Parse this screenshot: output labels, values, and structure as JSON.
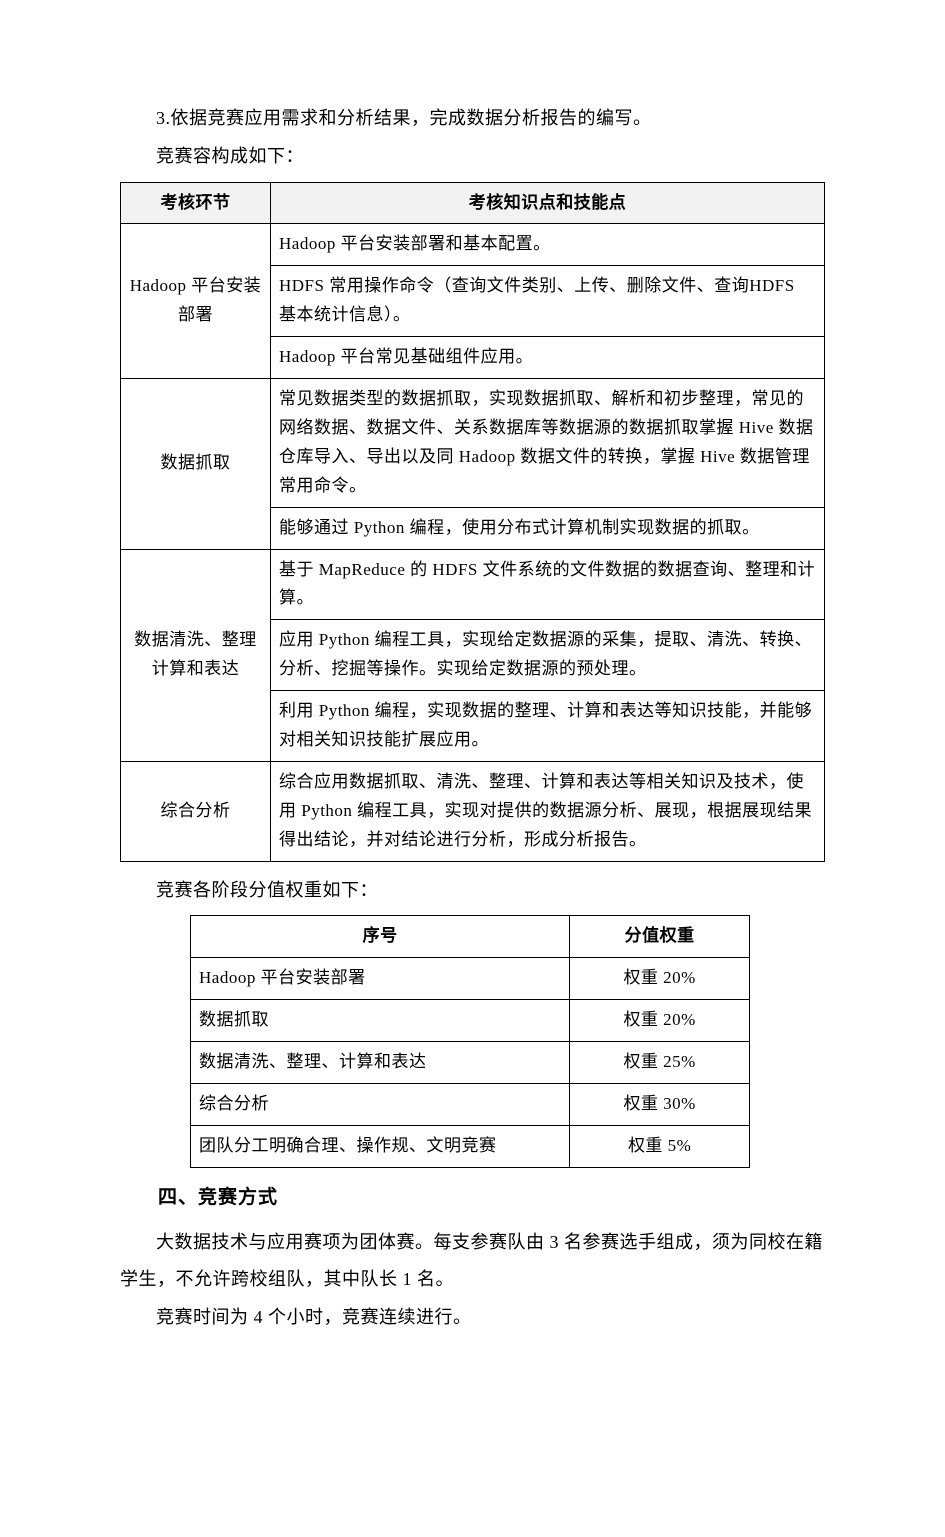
{
  "paragraphs": {
    "p1": "3.依据竞赛应用需求和分析结果，完成数据分析报告的编写。",
    "p2": "竞赛容构成如下：",
    "p3": "竞赛各阶段分值权重如下：",
    "heading": "四、竞赛方式",
    "p4": "大数据技术与应用赛项为团体赛。每支参赛队由 3 名参赛选手组成，须为同校在籍学生，不允许跨校组队，其中队长 1 名。",
    "p5": "竞赛时间为 4 个小时，竞赛连续进行。"
  },
  "table1": {
    "header_col1": "考核环节",
    "header_col2": "考核知识点和技能点",
    "groups": [
      {
        "label": "Hadoop 平台安装部署",
        "items": [
          "Hadoop 平台安装部署和基本配置。",
          "HDFS 常用操作命令（查询文件类别、上传、删除文件、查询HDFS 基本统计信息）。",
          "Hadoop 平台常见基础组件应用。"
        ]
      },
      {
        "label": "数据抓取",
        "items": [
          "常见数据类型的数据抓取，实现数据抓取、解析和初步整理，常见的网络数据、数据文件、关系数据库等数据源的数据抓取掌握 Hive 数据仓库导入、导出以及同 Hadoop 数据文件的转换，掌握 Hive 数据管理常用命令。",
          "能够通过 Python 编程，使用分布式计算机制实现数据的抓取。"
        ]
      },
      {
        "label": "数据清洗、整理计算和表达",
        "items": [
          "基于 MapReduce 的 HDFS 文件系统的文件数据的数据查询、整理和计算。",
          "应用 Python 编程工具，实现给定数据源的采集，提取、清洗、转换、分析、挖掘等操作。实现给定数据源的预处理。",
          "利用 Python 编程，实现数据的整理、计算和表达等知识技能，并能够对相关知识技能扩展应用。"
        ]
      },
      {
        "label": "综合分析",
        "items": [
          "综合应用数据抓取、清洗、整理、计算和表达等相关知识及技术，使用 Python 编程工具，实现对提供的数据源分析、展现，根据展现结果得出结论，并对结论进行分析，形成分析报告。"
        ]
      }
    ]
  },
  "table2": {
    "header_col1": "序号",
    "header_col2": "分值权重",
    "rows": [
      {
        "name": "Hadoop 平台安装部署",
        "weight": "权重 20%"
      },
      {
        "name": "数据抓取",
        "weight": "权重 20%"
      },
      {
        "name": "数据清洗、整理、计算和表达",
        "weight": "权重 25%"
      },
      {
        "name": "综合分析",
        "weight": "权重 30%"
      },
      {
        "name": "团队分工明确合理、操作规、文明竞赛",
        "weight": "权重 5%"
      }
    ]
  }
}
